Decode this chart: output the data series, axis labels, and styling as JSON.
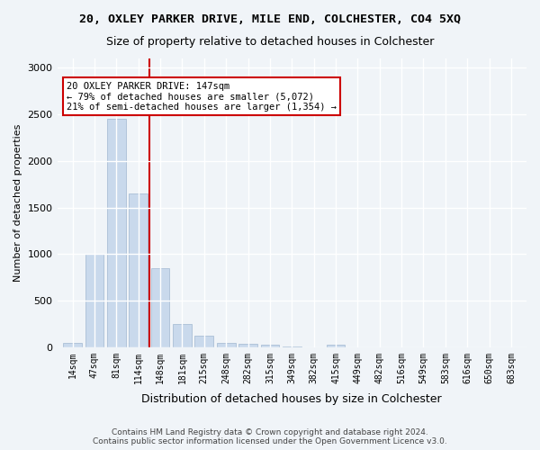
{
  "title1": "20, OXLEY PARKER DRIVE, MILE END, COLCHESTER, CO4 5XQ",
  "title2": "Size of property relative to detached houses in Colchester",
  "xlabel": "Distribution of detached houses by size in Colchester",
  "ylabel": "Number of detached properties",
  "categories": [
    "14sqm",
    "47sqm",
    "81sqm",
    "114sqm",
    "148sqm",
    "181sqm",
    "215sqm",
    "248sqm",
    "282sqm",
    "315sqm",
    "349sqm",
    "382sqm",
    "415sqm",
    "449sqm",
    "482sqm",
    "516sqm",
    "549sqm",
    "583sqm",
    "616sqm",
    "650sqm",
    "683sqm"
  ],
  "values": [
    50,
    1000,
    2450,
    1650,
    850,
    250,
    120,
    50,
    40,
    30,
    5,
    0,
    30,
    0,
    0,
    0,
    0,
    0,
    0,
    0,
    0
  ],
  "bar_color": "#c9d9ec",
  "bar_edge_color": "#a0b8d0",
  "vline_x": 3.5,
  "vline_color": "#cc0000",
  "annotation_text": "20 OXLEY PARKER DRIVE: 147sqm\n← 79% of detached houses are smaller (5,072)\n21% of semi-detached houses are larger (1,354) →",
  "annotation_box_color": "#cc0000",
  "ylim": [
    0,
    3100
  ],
  "footnote": "Contains HM Land Registry data © Crown copyright and database right 2024.\nContains public sector information licensed under the Open Government Licence v3.0.",
  "bg_color": "#f0f4f8",
  "grid_color": "#ffffff"
}
